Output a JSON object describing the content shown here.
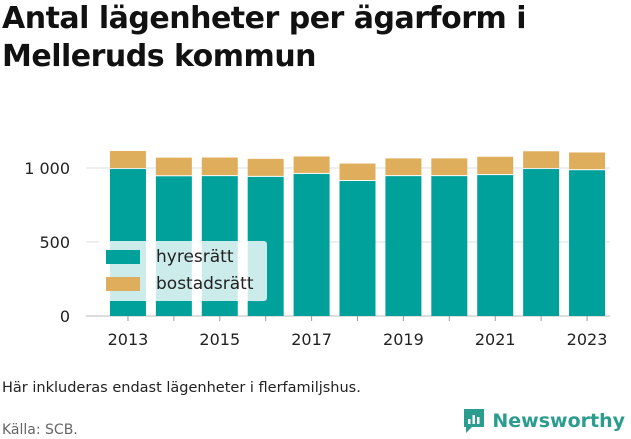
{
  "title": "Antal lägenheter per ägarform i Melleruds kommun",
  "note": "Här inkluderas endast lägenheter i flerfamiljshus.",
  "source": "Källa: SCB.",
  "logo": {
    "text": "Newsworthy",
    "icon": "newsworthy-chart-icon"
  },
  "colors": {
    "hyresratt": "#00a19a",
    "bostadsratt": "#dfae5c",
    "grid": "#dddddd",
    "logo": "#2a9d8f"
  },
  "chart_data": {
    "type": "bar",
    "stacked": true,
    "x": [
      2013,
      2014,
      2015,
      2016,
      2017,
      2018,
      2019,
      2020,
      2021,
      2022,
      2023
    ],
    "x_tick_labels": [
      "2013",
      "2015",
      "2017",
      "2019",
      "2021",
      "2023"
    ],
    "series": [
      {
        "name": "hyresrätt",
        "color": "#00a19a",
        "values": [
          993,
          944,
          945,
          940,
          960,
          912,
          945,
          945,
          952,
          993,
          985
        ]
      },
      {
        "name": "bostadsrätt",
        "color": "#dfae5c",
        "values": [
          122,
          126,
          126,
          122,
          118,
          118,
          120,
          120,
          124,
          120,
          120
        ]
      }
    ],
    "y_ticks": [
      0,
      500,
      1000
    ],
    "y_tick_labels": [
      "0",
      "500",
      "1 000"
    ],
    "ylim": [
      0,
      1150
    ],
    "grid": "horizontal",
    "legend_position": "inside-lower-left"
  }
}
